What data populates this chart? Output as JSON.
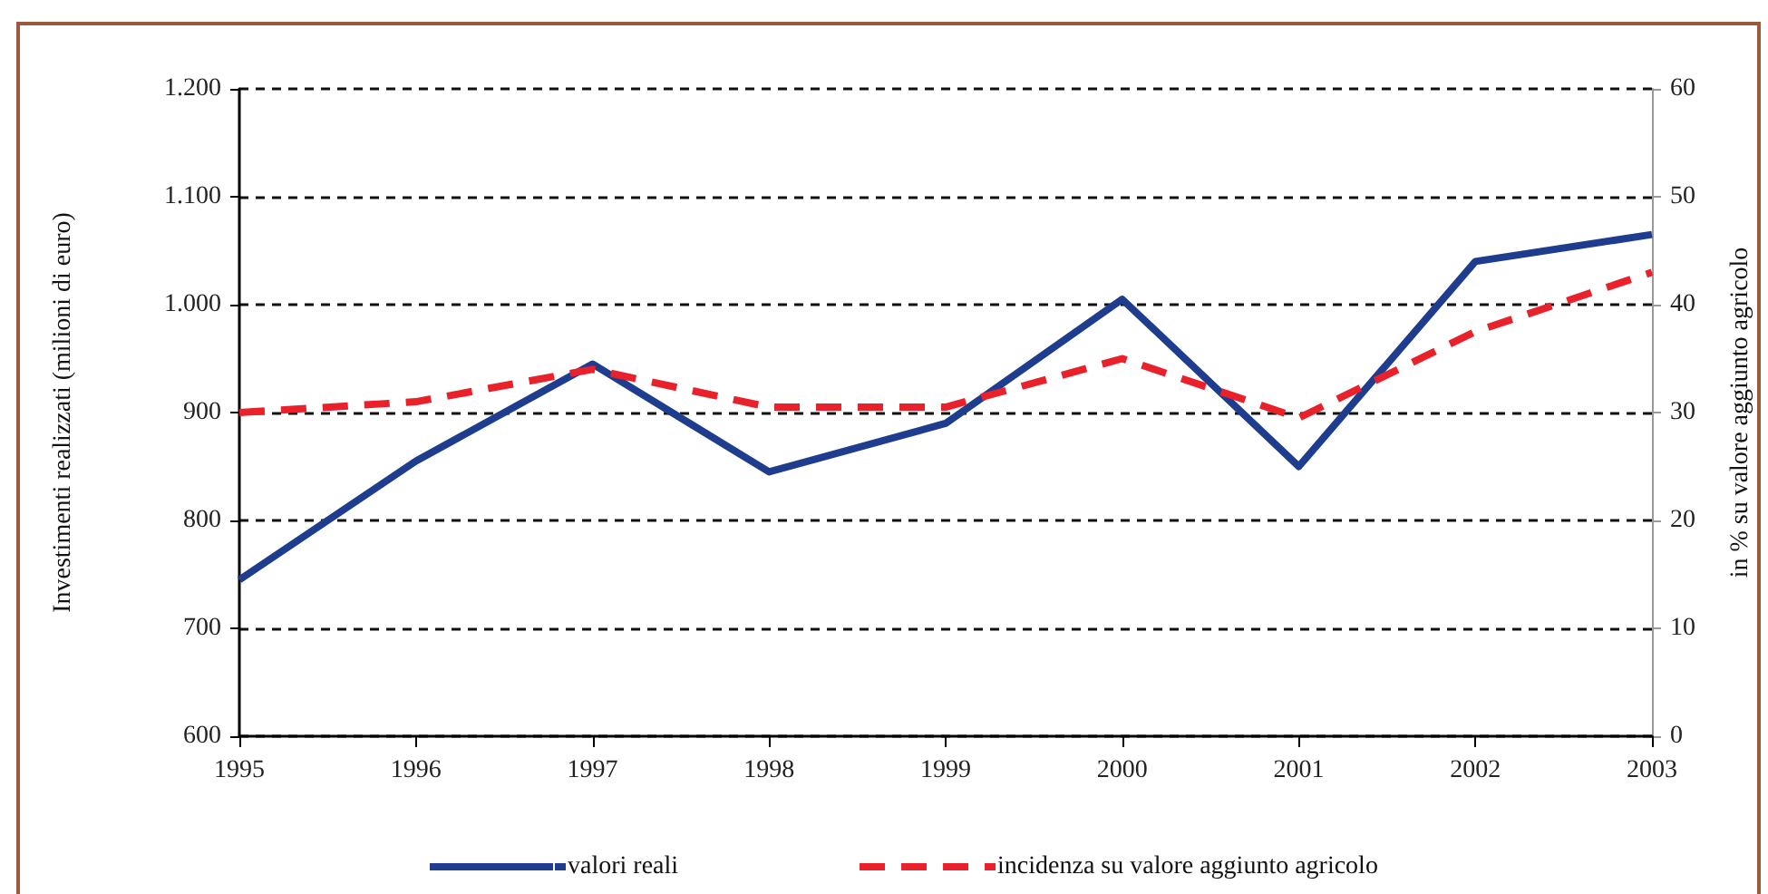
{
  "chart_data": {
    "type": "line",
    "categories": [
      "1995",
      "1996",
      "1997",
      "1998",
      "1999",
      "2000",
      "2001",
      "2002",
      "2003"
    ],
    "series": [
      {
        "name": "valori reali",
        "color": "#1f3d8f",
        "line_style": "solid",
        "values": [
          745,
          855,
          945,
          845,
          890,
          1005,
          850,
          1040,
          1065
        ]
      },
      {
        "name": "incidenza su valore aggiunto agricolo",
        "color": "#e8212b",
        "line_style": "dashed",
        "axis": "y2",
        "values": [
          30,
          31,
          34,
          30.5,
          30.5,
          35,
          29.5,
          37.5,
          43
        ]
      }
    ],
    "ylabel": "Investimenti realizzati (milioni di euro)",
    "y2label": "in % su valore aggiunto agricolo",
    "ylim": [
      600,
      1200
    ],
    "yticks": [
      600,
      700,
      800,
      900,
      {
        "value": 1000,
        "label": "1.000"
      },
      {
        "value": 1100,
        "label": "1.100"
      },
      {
        "value": 1200,
        "label": "1.200"
      }
    ],
    "y2lim": [
      0,
      60
    ],
    "y2ticks": [
      0,
      10,
      20,
      30,
      40,
      50,
      60
    ],
    "grid": "y",
    "legend": "bottom",
    "marker": "none"
  }
}
